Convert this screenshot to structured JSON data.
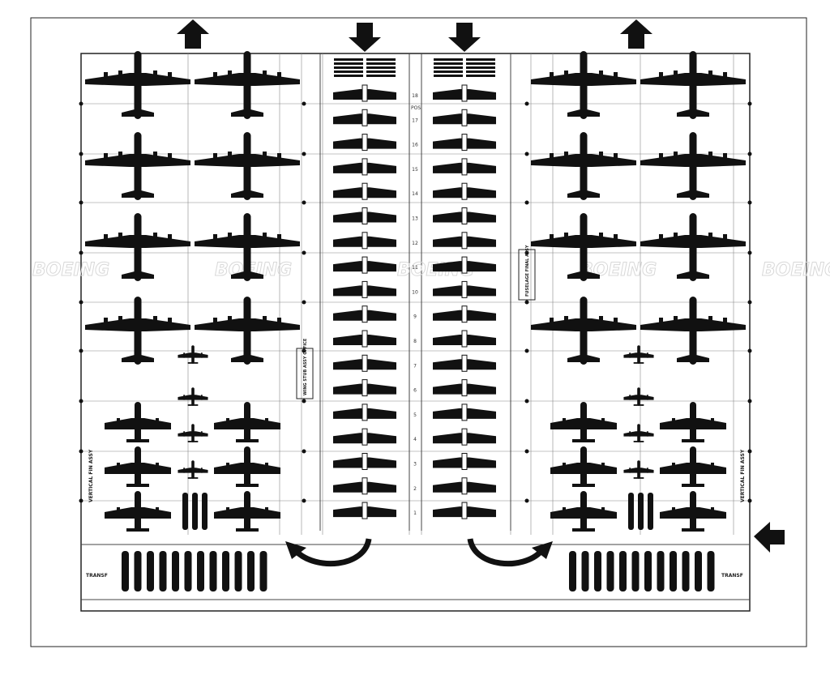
{
  "diagram": {
    "position_header": "POS.",
    "positions": [
      "18",
      "17",
      "16",
      "15",
      "14",
      "13",
      "12",
      "11",
      "10",
      "9",
      "8",
      "7",
      "6",
      "5",
      "4",
      "3",
      "2",
      "1"
    ],
    "left_label_vertical_fin": "VERTICAL FIN ASSY",
    "right_label_vertical_fin": "VERTICAL FIN ASSY",
    "left_label_transfer": "TRANSF",
    "right_label_transfer": "TRANSF",
    "left_office_label": "WING STUB ASSY OFFICE",
    "right_office_label": "FUSELAGE FINAL ASSY",
    "watermark": "BOEING",
    "arrows": [
      "up",
      "down",
      "down",
      "up",
      "left"
    ],
    "colors": {
      "ink": "#111111",
      "paper": "#ffffff",
      "grid": "#444444"
    }
  }
}
